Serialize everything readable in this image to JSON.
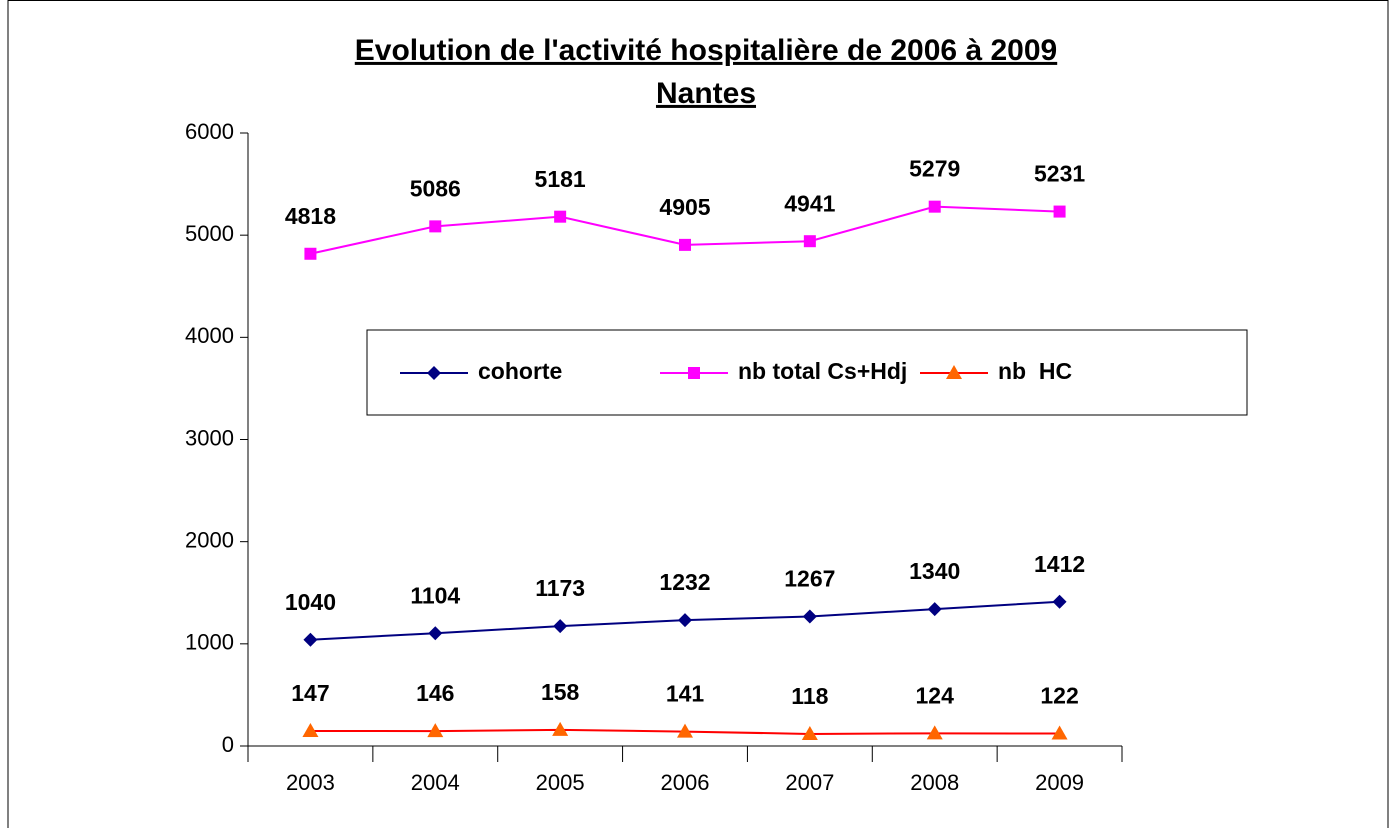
{
  "chart_data": {
    "type": "line",
    "title": "Evolution de l'activité hospitalière de 2006 à 2009",
    "subtitle": "Nantes",
    "categories": [
      "2003",
      "2004",
      "2005",
      "2006",
      "2007",
      "2008",
      "2009"
    ],
    "series": [
      {
        "name": "cohorte",
        "color": "#000080",
        "marker": "diamond",
        "values": [
          1040,
          1104,
          1173,
          1232,
          1267,
          1340,
          1412
        ]
      },
      {
        "name": "nb total Cs+Hdj",
        "color": "#ff00ff",
        "marker": "square",
        "values": [
          4818,
          5086,
          5181,
          4905,
          4941,
          5279,
          5231
        ]
      },
      {
        "name": "nb  HC",
        "color": "#ff0000",
        "marker_color": "#ff6600",
        "marker": "triangle",
        "values": [
          147,
          146,
          158,
          141,
          118,
          124,
          122
        ]
      }
    ],
    "ylim": [
      0,
      6000
    ],
    "yticks": [
      0,
      1000,
      2000,
      3000,
      4000,
      5000,
      6000
    ],
    "grid": false,
    "legend": "center"
  }
}
